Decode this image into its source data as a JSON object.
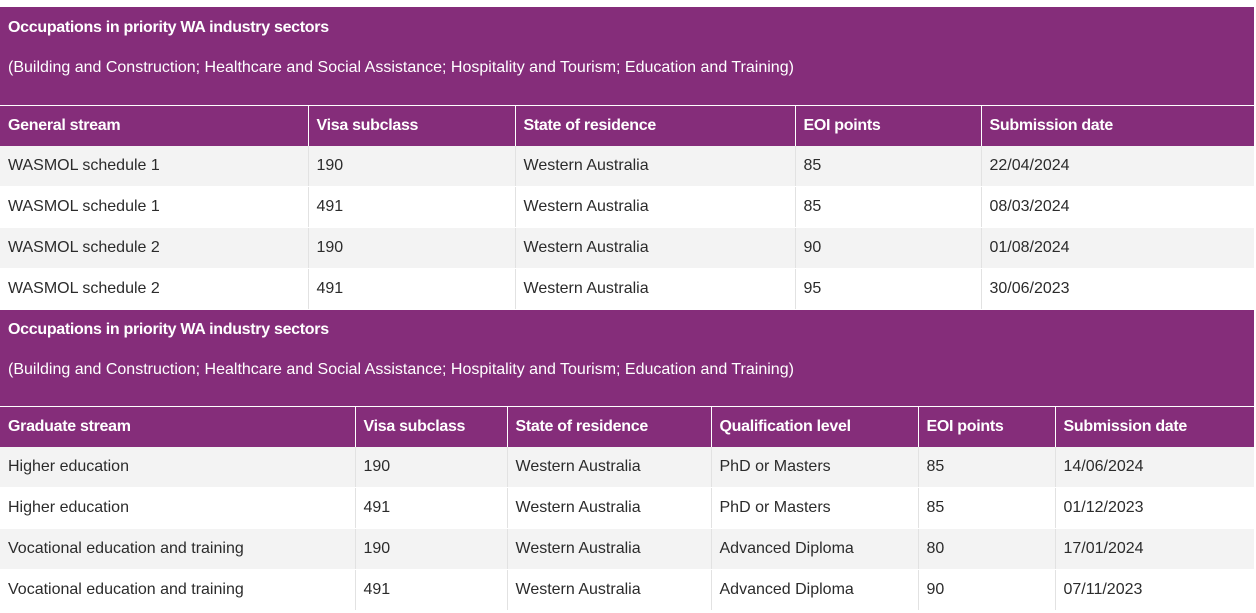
{
  "section1": {
    "title": "Occupations in priority WA industry sectors",
    "subtitle": "(Building and Construction; Healthcare and Social Assistance; Hospitality and Tourism; Education and Training)",
    "headers": [
      "General stream",
      "Visa subclass",
      "State of residence",
      "EOI points",
      "Submission date"
    ],
    "rows": [
      [
        "WASMOL schedule 1",
        "190",
        "Western Australia",
        "85",
        "22/04/2024"
      ],
      [
        "WASMOL schedule 1",
        "491",
        "Western Australia",
        "85",
        "08/03/2024"
      ],
      [
        "WASMOL schedule 2",
        "190",
        "Western Australia",
        "90",
        "01/08/2024"
      ],
      [
        "WASMOL schedule 2",
        "491",
        "Western Australia",
        "95",
        "30/06/2023"
      ]
    ]
  },
  "section2": {
    "title": "Occupations in priority WA industry sectors",
    "subtitle": "(Building and Construction; Healthcare and Social Assistance; Hospitality and Tourism; Education and Training)",
    "headers": [
      "Graduate stream",
      "Visa subclass",
      "State of residence",
      "Qualification level",
      "EOI points",
      "Submission date"
    ],
    "rows": [
      [
        "Higher education",
        "190",
        "Western Australia",
        "PhD or Masters",
        "85",
        "14/06/2024"
      ],
      [
        "Higher education",
        "491",
        "Western Australia",
        "PhD or Masters",
        "85",
        "01/12/2023"
      ],
      [
        "Vocational education and training",
        "190",
        "Western Australia",
        "Advanced Diploma",
        "80",
        "17/01/2024"
      ],
      [
        "Vocational education and training",
        "491",
        "Western Australia",
        "Advanced Diploma",
        "90",
        "07/11/2023"
      ]
    ]
  },
  "colors": {
    "header_purple": "#852d7a",
    "row_alt": "#f3f3f3"
  }
}
